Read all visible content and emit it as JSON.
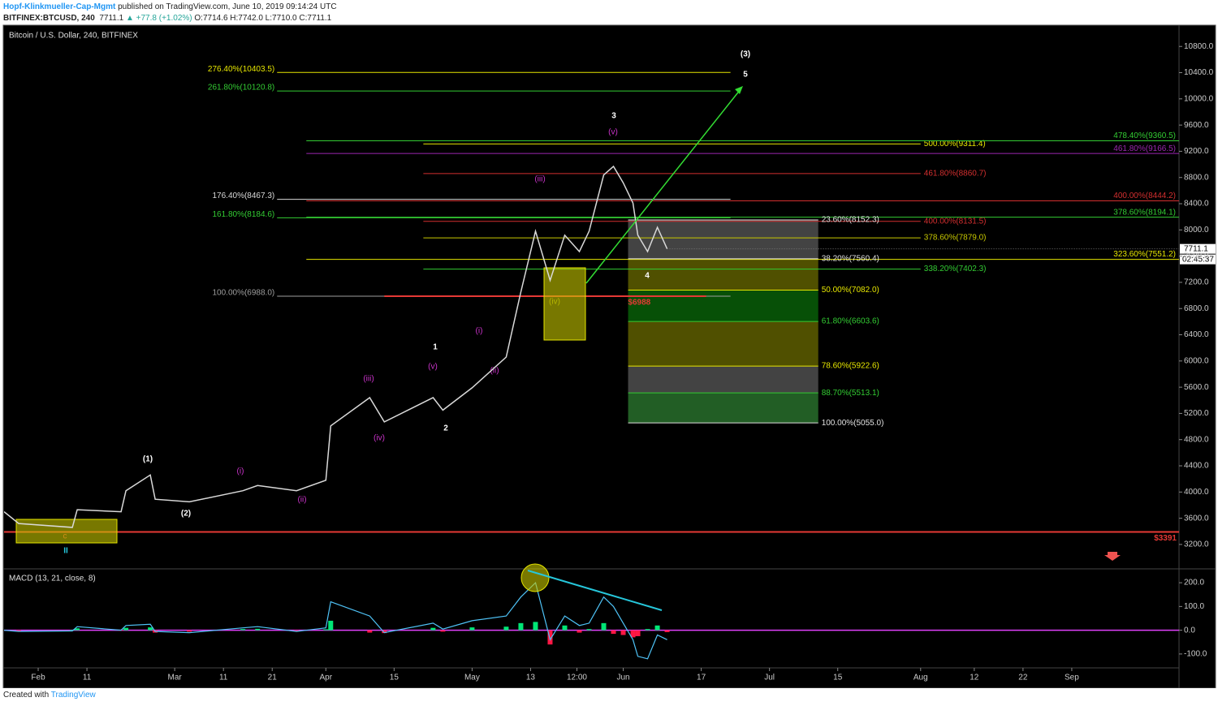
{
  "header": {
    "author": "Hopf-Klinkmueller-Cap-Mgmt",
    "published": "published on TradingView.com, June 10, 2019 09:14:24 UTC",
    "symbol": "BITFINEX:BTCUSD, 240",
    "last": "7711.1",
    "change": "▲ +77.8 (+1.02%)",
    "ohlc": "O:7714.6 H:7742.0 L:7710.0 C:7711.1"
  },
  "footer": {
    "created": "Created with",
    "brand": "TradingView"
  },
  "chart_data": {
    "type": "line",
    "title": "Bitcoin / U.S. Dollar, 240, BITFINEX",
    "color": "#d9d9d9",
    "x": [
      "2019-01-25",
      "2019-01-28",
      "2019-02-08",
      "2019-02-09",
      "2019-02-18",
      "2019-02-19",
      "2019-02-24",
      "2019-02-25",
      "2019-03-04",
      "2019-03-15",
      "2019-03-18",
      "2019-03-26",
      "2019-04-01",
      "2019-04-02",
      "2019-04-10",
      "2019-04-13",
      "2019-04-23",
      "2019-04-25",
      "2019-05-01",
      "2019-05-08",
      "2019-05-11",
      "2019-05-14",
      "2019-05-17",
      "2019-05-20",
      "2019-05-23",
      "2019-05-25",
      "2019-05-28",
      "2019-05-30",
      "2019-06-01",
      "2019-06-03",
      "2019-06-04",
      "2019-06-06",
      "2019-06-08",
      "2019-06-10"
    ],
    "values": [
      3700,
      3520,
      3460,
      3730,
      3700,
      4020,
      4260,
      3890,
      3850,
      4020,
      4100,
      4020,
      4180,
      5010,
      5440,
      5070,
      5440,
      5250,
      5590,
      6060,
      7050,
      7980,
      7230,
      7920,
      7670,
      7980,
      8840,
      8970,
      8720,
      8410,
      7920,
      7670,
      8040,
      7711.1
    ],
    "xlim": [
      "2019-01-25",
      "2019-09-23"
    ],
    "xticks": [
      {
        "value": "2019-02-01",
        "label": "Feb"
      },
      {
        "value": "2019-02-11",
        "label": "11"
      },
      {
        "value": "2019-03-01",
        "label": "Mar"
      },
      {
        "value": "2019-03-11",
        "label": "11"
      },
      {
        "value": "2019-03-21",
        "label": "21"
      },
      {
        "value": "2019-04-01",
        "label": "Apr"
      },
      {
        "value": "2019-04-15",
        "label": "15"
      },
      {
        "value": "2019-05-01",
        "label": "May"
      },
      {
        "value": "2019-05-13",
        "label": "13"
      },
      {
        "value": "2019-05-22T12:00",
        "label": "12:00"
      },
      {
        "value": "2019-06-01",
        "label": "Jun"
      },
      {
        "value": "2019-06-17",
        "label": "17"
      },
      {
        "value": "2019-07-01",
        "label": "Jul"
      },
      {
        "value": "2019-07-15",
        "label": "15"
      },
      {
        "value": "2019-08-01",
        "label": "Aug"
      },
      {
        "value": "2019-08-12",
        "label": "12"
      },
      {
        "value": "2019-08-22",
        "label": "22"
      },
      {
        "value": "2019-09-01",
        "label": "Sep"
      }
    ],
    "ylim": [
      2840,
      11100
    ],
    "yticks": [
      {
        "value": 3200,
        "label": "3200.0"
      },
      {
        "value": 3600,
        "label": "3600.0"
      },
      {
        "value": 4000,
        "label": "4000.0"
      },
      {
        "value": 4400,
        "label": "4400.0"
      },
      {
        "value": 4800,
        "label": "4800.0"
      },
      {
        "value": 5200,
        "label": "5200.0"
      },
      {
        "value": 5600,
        "label": "5600.0"
      },
      {
        "value": 6000,
        "label": "6000.0"
      },
      {
        "value": 6400,
        "label": "6400.0"
      },
      {
        "value": 6800,
        "label": "6800.0"
      },
      {
        "value": 7200,
        "label": "7200.0"
      },
      {
        "value": 7600,
        "label": "7600.0"
      },
      {
        "value": 8000,
        "label": "8000.0"
      },
      {
        "value": 8400,
        "label": "8400.0"
      },
      {
        "value": 8800,
        "label": "8800.0"
      },
      {
        "value": 9200,
        "label": "9200.0"
      },
      {
        "value": 9600,
        "label": "9600.0"
      },
      {
        "value": 10000,
        "label": "10000.0"
      },
      {
        "value": 10400,
        "label": "10400.0"
      },
      {
        "value": 10800,
        "label": "10800.0"
      }
    ],
    "grid": false,
    "current": {
      "value": 7711.1,
      "label": "7711.1",
      "countdown": "02:45:37"
    },
    "levels": [
      {
        "value": 6988,
        "label": "$6988",
        "color": "#e53935",
        "from": "2019-04-13",
        "to": "2019-06-18"
      },
      {
        "value": 3391,
        "label": "$3391",
        "color": "#e53935",
        "from": "2019-01-25",
        "to": "2019-09-23"
      }
    ],
    "fib_groups": [
      {
        "from": "2019-03-22",
        "to": "2019-06-23",
        "levels": [
          {
            "label": "276.40%(10403.5)",
            "value": 10403.5,
            "color": "#e6e600"
          },
          {
            "label": "261.80%(10120.8)",
            "value": 10120.8,
            "color": "#33cc33"
          },
          {
            "label": "176.40%(8467.3)",
            "value": 8467.3,
            "color": "#d9d9d9"
          },
          {
            "label": "161.80%(8184.6)",
            "value": 8184.6,
            "color": "#33cc33"
          },
          {
            "label": "100.00%(6988.0)",
            "value": 6988.0,
            "color": "#9e9e9e"
          }
        ]
      },
      {
        "from": "2019-04-21",
        "to": "2019-08-01",
        "levels": [
          {
            "label": "500.00%(9311.4)",
            "value": 9311.4,
            "color": "#e6e600"
          },
          {
            "label": "461.80%(8860.7)",
            "value": 8860.7,
            "color": "#d32f2f"
          },
          {
            "label": "400.00%(8131.5)",
            "value": 8131.5,
            "color": "#d32f2f"
          },
          {
            "label": "378.60%(7879.0)",
            "value": 7879.0,
            "color": "#c8c800"
          },
          {
            "label": "338.20%(7402.3)",
            "value": 7402.3,
            "color": "#33cc33"
          }
        ]
      },
      {
        "from": "2019-03-28",
        "to": "2019-09-23",
        "levels": [
          {
            "label": "478.40%(9360.5)",
            "value": 9360.5,
            "color": "#33cc33"
          },
          {
            "label": "461.80%(9166.5)",
            "value": 9166.5,
            "color": "#9c27b0"
          },
          {
            "label": "400.00%(8444.2)",
            "value": 8444.2,
            "color": "#d32f2f"
          },
          {
            "label": "378.60%(8194.1)",
            "value": 8194.1,
            "color": "#33cc33"
          },
          {
            "label": "323.60%(7551.2)",
            "value": 7551.2,
            "color": "#e6e600"
          }
        ]
      },
      {
        "from": "2019-06-02",
        "to": "2019-07-11",
        "zones": [
          "#5a5a5a",
          "#6b6b00",
          "#0a6b0a",
          "#6b6b00",
          "#5a5a5a",
          "#2e7d32"
        ],
        "levels": [
          {
            "label": "23.60%(8152.3)",
            "value": 8152.3,
            "color": "#e0e0e0"
          },
          {
            "label": "38.20%(7560.4)",
            "value": 7560.4,
            "color": "#e0e0e0"
          },
          {
            "label": "50.00%(7082.0)",
            "value": 7082.0,
            "color": "#e6e600"
          },
          {
            "label": "61.80%(6603.6)",
            "value": 6603.6,
            "color": "#33cc33"
          },
          {
            "label": "78.60%(5922.6)",
            "value": 5922.6,
            "color": "#e6e600"
          },
          {
            "label": "88.70%(5513.1)",
            "value": 5513.1,
            "color": "#33cc33"
          },
          {
            "label": "100.00%(5055.0)",
            "value": 5055.0,
            "color": "#e0e0e0"
          }
        ]
      }
    ],
    "wave_labels": [
      {
        "text": "(3)",
        "color": "#ffffff"
      },
      {
        "text": "5",
        "color": "#ffffff"
      },
      {
        "text": "3",
        "color": "#ffffff"
      },
      {
        "text": "(v)",
        "color": "#cc33cc"
      },
      {
        "text": "(iii)",
        "color": "#cc33cc"
      },
      {
        "text": "(iv)",
        "color": "#9a9a00"
      },
      {
        "text": "4",
        "color": "#ffffff"
      },
      {
        "text": "1",
        "color": "#ffffff"
      },
      {
        "text": "(v)",
        "color": "#cc33cc"
      },
      {
        "text": "(i)",
        "color": "#cc33cc"
      },
      {
        "text": "(ii)",
        "color": "#cc33cc"
      },
      {
        "text": "(iii)",
        "color": "#cc33cc"
      },
      {
        "text": "(iv)",
        "color": "#cc33cc"
      },
      {
        "text": "2",
        "color": "#ffffff"
      },
      {
        "text": "(1)",
        "color": "#ffffff"
      },
      {
        "text": "(2)",
        "color": "#ffffff"
      },
      {
        "text": "(i)",
        "color": "#cc33cc"
      },
      {
        "text": "(ii)",
        "color": "#cc33cc"
      },
      {
        "text": "c",
        "color": "#e53935"
      },
      {
        "text": "II",
        "color": "#26c6da"
      }
    ],
    "macd": {
      "label": "MACD (13, 21, close, 8)",
      "color": "#4fc3f7",
      "up_color": "#00e676",
      "down_color": "#ff1744",
      "zero_color": "#e040fb",
      "values": [
        0,
        -5,
        -3,
        15,
        0,
        20,
        25,
        -5,
        -10,
        10,
        15,
        -5,
        10,
        120,
        60,
        -10,
        30,
        5,
        40,
        60,
        140,
        200,
        -40,
        60,
        20,
        30,
        140,
        100,
        30,
        -40,
        -110,
        -120,
        -20,
        -40
      ],
      "histogram": [
        -2,
        -3,
        2,
        8,
        -2,
        10,
        12,
        -10,
        -6,
        5,
        6,
        -4,
        4,
        40,
        -10,
        -12,
        10,
        -6,
        12,
        15,
        30,
        35,
        -60,
        20,
        -10,
        5,
        30,
        -15,
        -20,
        -30,
        -25,
        5,
        20,
        -8
      ],
      "ylim": [
        -155,
        255
      ],
      "yticks": [
        {
          "value": 200,
          "label": "200.0"
        },
        {
          "value": 100,
          "label": "100.0"
        },
        {
          "value": 0,
          "label": "0.0"
        },
        {
          "value": -100,
          "label": "-100.0"
        }
      ]
    }
  }
}
